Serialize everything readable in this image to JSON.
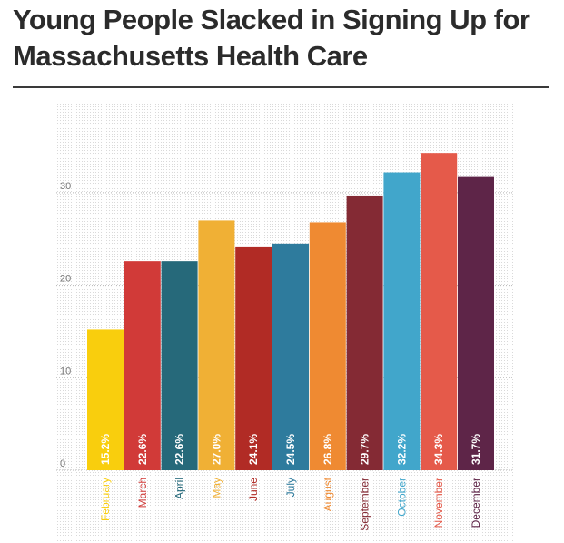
{
  "title": "Young People Slacked in Signing Up for Massachusetts Health Care",
  "chart_data": {
    "type": "bar",
    "title": "Young People Slacked in Signing Up for Massachusetts Health Care",
    "xlabel": "",
    "ylabel": "",
    "ylim": [
      0,
      38
    ],
    "yticks": [
      0,
      10,
      20,
      30
    ],
    "grid": true,
    "categories": [
      "February",
      "March",
      "April",
      "May",
      "June",
      "July",
      "August",
      "September",
      "October",
      "November",
      "December"
    ],
    "values": [
      15.2,
      22.6,
      22.6,
      27.0,
      24.1,
      24.5,
      26.8,
      29.7,
      32.2,
      34.3,
      31.7
    ],
    "value_labels": [
      "15.2%",
      "22.6%",
      "22.6%",
      "27.0%",
      "24.1%",
      "24.5%",
      "26.8%",
      "29.7%",
      "32.2%",
      "34.3%",
      "31.7%"
    ],
    "colors": [
      "#f9ce0d",
      "#d13a38",
      "#26697a",
      "#f0b035",
      "#b12b25",
      "#2e7b9d",
      "#ef8a32",
      "#842a34",
      "#41a6cb",
      "#e55a4a",
      "#5e2548"
    ]
  }
}
